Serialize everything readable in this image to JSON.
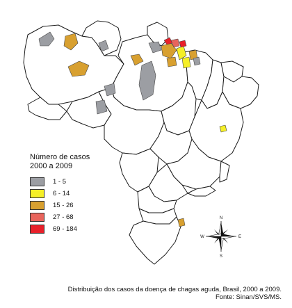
{
  "legend": {
    "title_line1": "Número de casos",
    "title_line2": "2000 a 2009",
    "items": [
      {
        "label": "1 - 5",
        "color": "#9c9ea3"
      },
      {
        "label": "6 - 14",
        "color": "#f5ef28"
      },
      {
        "label": "15 - 26",
        "color": "#d8a030"
      },
      {
        "label": "27 - 68",
        "color": "#e8645c"
      },
      {
        "label": "69 - 184",
        "color": "#e8202a"
      }
    ]
  },
  "compass": {
    "n": "N",
    "s": "S",
    "e": "E",
    "w": "W"
  },
  "caption": {
    "line1": "Distribuição dos casos da doença de chagas aguda, Brasil, 2000 a 2009.",
    "line2": "Fonte: Sinan/SVS/MS."
  }
}
